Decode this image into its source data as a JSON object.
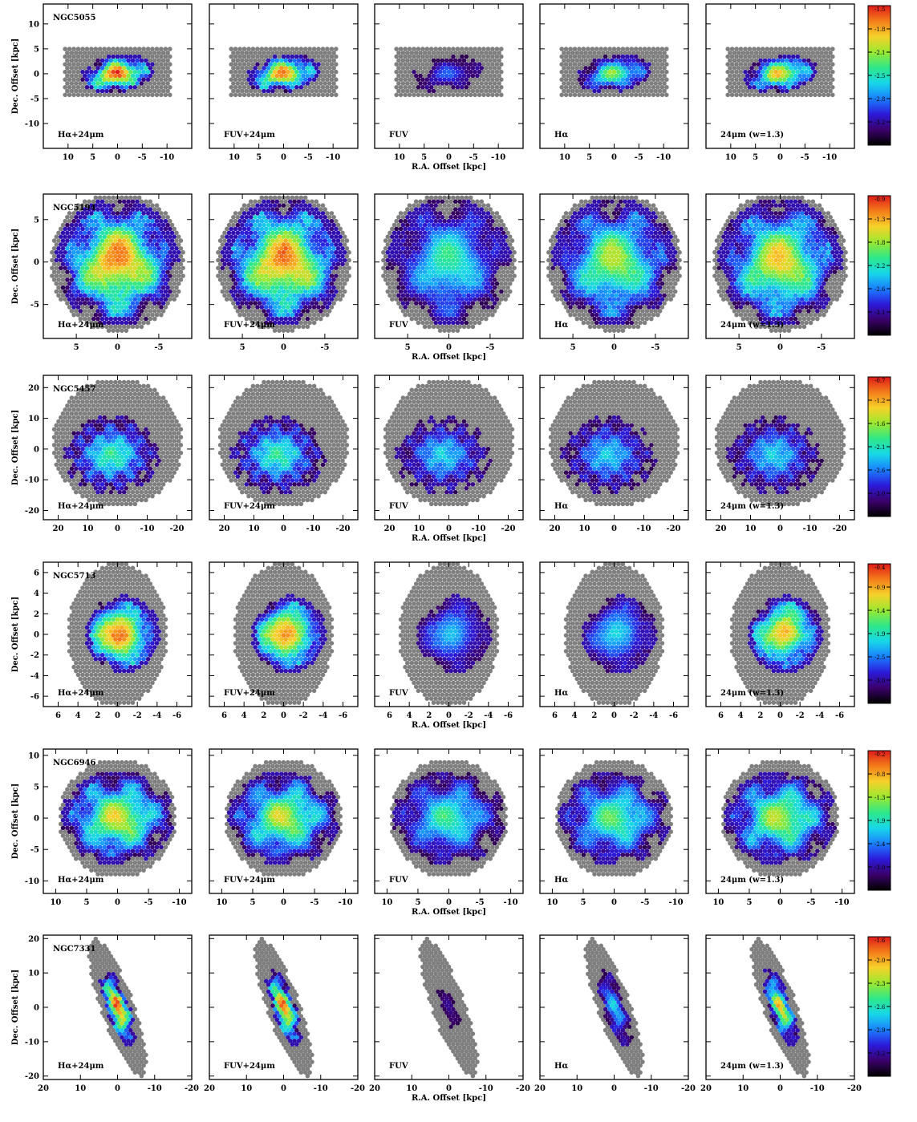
{
  "chart_data": {
    "type": "heatmap",
    "panel_labels": [
      "Hα+24μm",
      "FUV+24μm",
      "FUV",
      "Hα",
      "24μm (w=1.3)"
    ],
    "xlabel": "R.A. Offset [kpc]",
    "ylabel": "Dec. Offset [kpc]",
    "colormap": [
      "#000000",
      "#3a006a",
      "#2c1adb",
      "#1a7fff",
      "#17d7e8",
      "#2ee88a",
      "#9ae830",
      "#f6d22a",
      "#f47e1a",
      "#e01a1a"
    ],
    "masked_color": "#7f7f7f",
    "rows": [
      {
        "galaxy": "NGC5055",
        "xlim": [
          15,
          -15
        ],
        "ylim": [
          -15,
          14
        ],
        "xticks": [
          10,
          5,
          0,
          -5,
          -10
        ],
        "yticks": [
          10,
          5,
          0,
          -5,
          -10
        ],
        "colorbar_ticks": [
          "-1.5",
          "-1.8",
          "-2.1",
          "-2.5",
          "-2.8",
          "-3.2",
          "-3.5"
        ],
        "colorbar_range": [
          -3.5,
          -1.5
        ],
        "footprint": {
          "shape": "rect",
          "center": [
            0,
            0
          ],
          "half_width": 11,
          "half_height": 5,
          "rotation_deg": 0
        },
        "emission": {
          "center": [
            0,
            0
          ],
          "radius_x": 7,
          "radius_y": 3.5,
          "rotation_deg": -8
        },
        "panel_strength": [
          0.95,
          0.9,
          0.3,
          0.65,
          0.8
        ],
        "grid_on": false
      },
      {
        "galaxy": "NGC5194",
        "xlim": [
          9,
          -9
        ],
        "ylim": [
          -9,
          8
        ],
        "xticks": [
          5,
          0,
          -5
        ],
        "yticks": [
          5,
          0,
          -5
        ],
        "colorbar_ticks": [
          "-0.9",
          "-1.3",
          "-1.8",
          "-2.2",
          "-2.6",
          "-3.1",
          "-3.5"
        ],
        "colorbar_range": [
          -3.5,
          -0.9
        ],
        "footprint": {
          "shape": "ellipse",
          "center": [
            0,
            0
          ],
          "half_width": 8.2,
          "half_height": 8.2,
          "rotation_deg": 0
        },
        "emission": {
          "center": [
            0,
            0
          ],
          "radius_x": 7,
          "radius_y": 7,
          "rotation_deg": 0
        },
        "panel_strength": [
          0.9,
          0.9,
          0.55,
          0.7,
          0.8
        ],
        "grid_on": false
      },
      {
        "galaxy": "NGC5457",
        "xlim": [
          25,
          -25
        ],
        "ylim": [
          -23,
          24
        ],
        "xticks": [
          20,
          10,
          0,
          -10,
          -20
        ],
        "yticks": [
          20,
          10,
          0,
          -10,
          -20
        ],
        "colorbar_ticks": [
          "-0.7",
          "-1.2",
          "-1.6",
          "-2.1",
          "-2.6",
          "-3.0",
          "-3.5"
        ],
        "colorbar_range": [
          -3.5,
          -0.7
        ],
        "footprint": {
          "shape": "ellipse",
          "center": [
            0,
            2
          ],
          "half_width": 22,
          "half_height": 21,
          "rotation_deg": 0
        },
        "emission": {
          "center": [
            2,
            -2
          ],
          "radius_x": 15,
          "radius_y": 12,
          "rotation_deg": 0
        },
        "panel_strength": [
          0.55,
          0.55,
          0.45,
          0.45,
          0.45
        ],
        "grid_on": false
      },
      {
        "galaxy": "NGC5713",
        "xlim": [
          7.5,
          -7.5
        ],
        "ylim": [
          -7,
          7
        ],
        "xticks": [
          6,
          4,
          2,
          0,
          -2,
          -4,
          -6
        ],
        "yticks": [
          6,
          4,
          2,
          0,
          -2,
          -4,
          -6
        ],
        "colorbar_ticks": [
          "-0.4",
          "-0.9",
          "-1.4",
          "-1.9",
          "-2.5",
          "-3.0",
          "-3.5"
        ],
        "colorbar_range": [
          -3.5,
          -0.4
        ],
        "footprint": {
          "shape": "ellipse",
          "center": [
            0,
            0
          ],
          "half_width": 5,
          "half_height": 7,
          "rotation_deg": 0
        },
        "emission": {
          "center": [
            -0.5,
            0
          ],
          "radius_x": 3.5,
          "radius_y": 3.5,
          "rotation_deg": 0
        },
        "panel_strength": [
          0.98,
          0.95,
          0.45,
          0.5,
          0.9
        ],
        "grid_on": false
      },
      {
        "galaxy": "NGC6946",
        "xlim": [
          12,
          -12
        ],
        "ylim": [
          -12,
          11
        ],
        "xticks": [
          10,
          5,
          0,
          -5,
          -10
        ],
        "yticks": [
          10,
          5,
          0,
          -5,
          -10
        ],
        "colorbar_ticks": [
          "-0.2",
          "-0.8",
          "-1.3",
          "-1.9",
          "-2.4",
          "-3.0",
          "-3.5"
        ],
        "colorbar_range": [
          -3.5,
          -0.2
        ],
        "footprint": {
          "shape": "ellipse",
          "center": [
            0,
            0
          ],
          "half_width": 9.5,
          "half_height": 9.5,
          "rotation_deg": 0
        },
        "emission": {
          "center": [
            0,
            0
          ],
          "radius_x": 8.5,
          "radius_y": 7,
          "rotation_deg": 0
        },
        "panel_strength": [
          0.75,
          0.72,
          0.55,
          0.6,
          0.7
        ],
        "grid_on": false
      },
      {
        "galaxy": "NGC7331",
        "xlim": [
          20,
          -20
        ],
        "ylim": [
          -21,
          21
        ],
        "xticks": [
          20,
          10,
          0,
          -10,
          -20
        ],
        "yticks": [
          20,
          10,
          0,
          -10,
          -20
        ],
        "colorbar_ticks": [
          "-1.6",
          "-2.0",
          "-2.3",
          "-2.6",
          "-2.9",
          "-3.2",
          "-3.5"
        ],
        "colorbar_range": [
          -3.5,
          -1.6
        ],
        "footprint": {
          "shape": "ellipse",
          "center": [
            0,
            0
          ],
          "half_width": 4.5,
          "half_height": 21,
          "rotation_deg": -18
        },
        "emission": {
          "center": [
            0,
            0
          ],
          "radius_x": 3,
          "radius_y": 11,
          "rotation_deg": -18
        },
        "panel_strength": [
          0.95,
          0.92,
          0.15,
          0.45,
          0.8
        ],
        "grid_on": false
      }
    ]
  }
}
